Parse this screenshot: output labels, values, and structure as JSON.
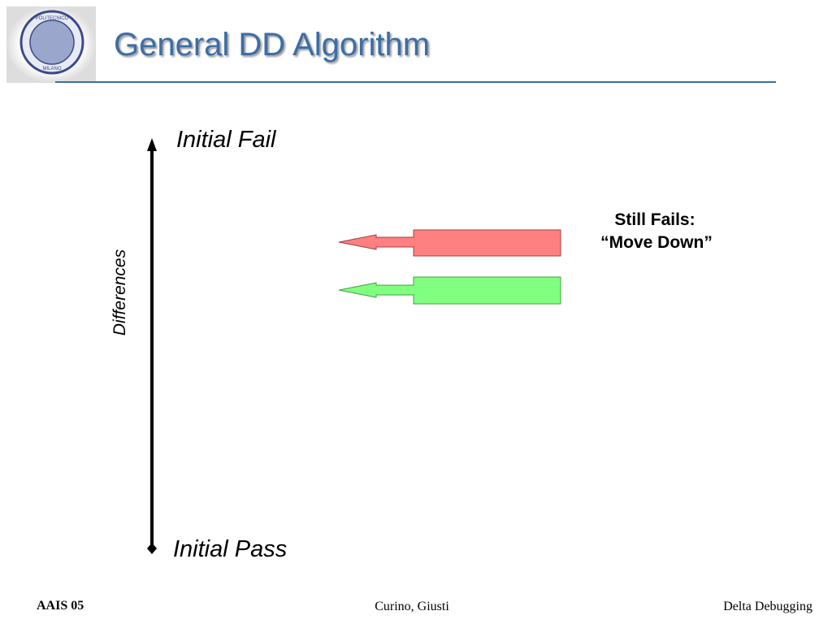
{
  "header": {
    "title": "General DD Algorithm",
    "logo": {
      "top": "POLITECNICO",
      "bottom": "MILANO"
    }
  },
  "diagram": {
    "top_label": "Initial Fail",
    "bottom_label": "Initial Pass",
    "axis_label": "Differences",
    "annotation": {
      "line1": "Still Fails:",
      "line2": "“Move Down”"
    }
  },
  "footer": {
    "left": "AAIS 05",
    "center": "Curino, Giusti",
    "right": "Delta Debugging"
  }
}
